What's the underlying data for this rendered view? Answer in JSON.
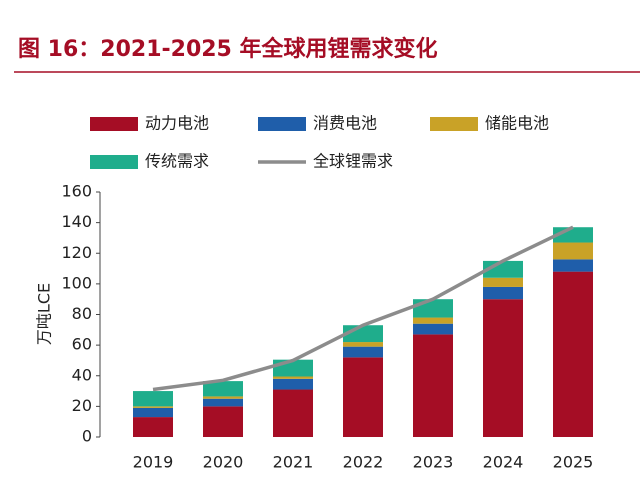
{
  "chart_data": {
    "type": "bar",
    "stacked": true,
    "title": "图 16：2021-2025 年全球用锂需求变化",
    "y_label": "万吨LCE",
    "categories": [
      "2019",
      "2020",
      "2021",
      "2022",
      "2023",
      "2024",
      "2025"
    ],
    "series": [
      {
        "name": "动力电池",
        "color": "#a50d25",
        "values": [
          13,
          20,
          31,
          52,
          67,
          90,
          108
        ]
      },
      {
        "name": "消费电池",
        "color": "#1f5eaa",
        "values": [
          6,
          5,
          7,
          7,
          7,
          8,
          8
        ]
      },
      {
        "name": "储能电池",
        "color": "#c9a227",
        "values": [
          1,
          1.5,
          1.5,
          3,
          4,
          6,
          11
        ]
      },
      {
        "name": "传统需求",
        "color": "#1fad8c",
        "values": [
          10,
          10,
          11,
          11,
          12,
          11,
          10
        ]
      },
      {
        "name": "全球锂需求",
        "color": "#8c8c8c",
        "type": "line",
        "values": [
          31,
          37,
          50,
          73,
          90,
          115,
          137
        ]
      }
    ],
    "ylim": [
      0,
      160
    ],
    "yticks": [
      0,
      20,
      40,
      60,
      80,
      100,
      120,
      140,
      160
    ]
  }
}
